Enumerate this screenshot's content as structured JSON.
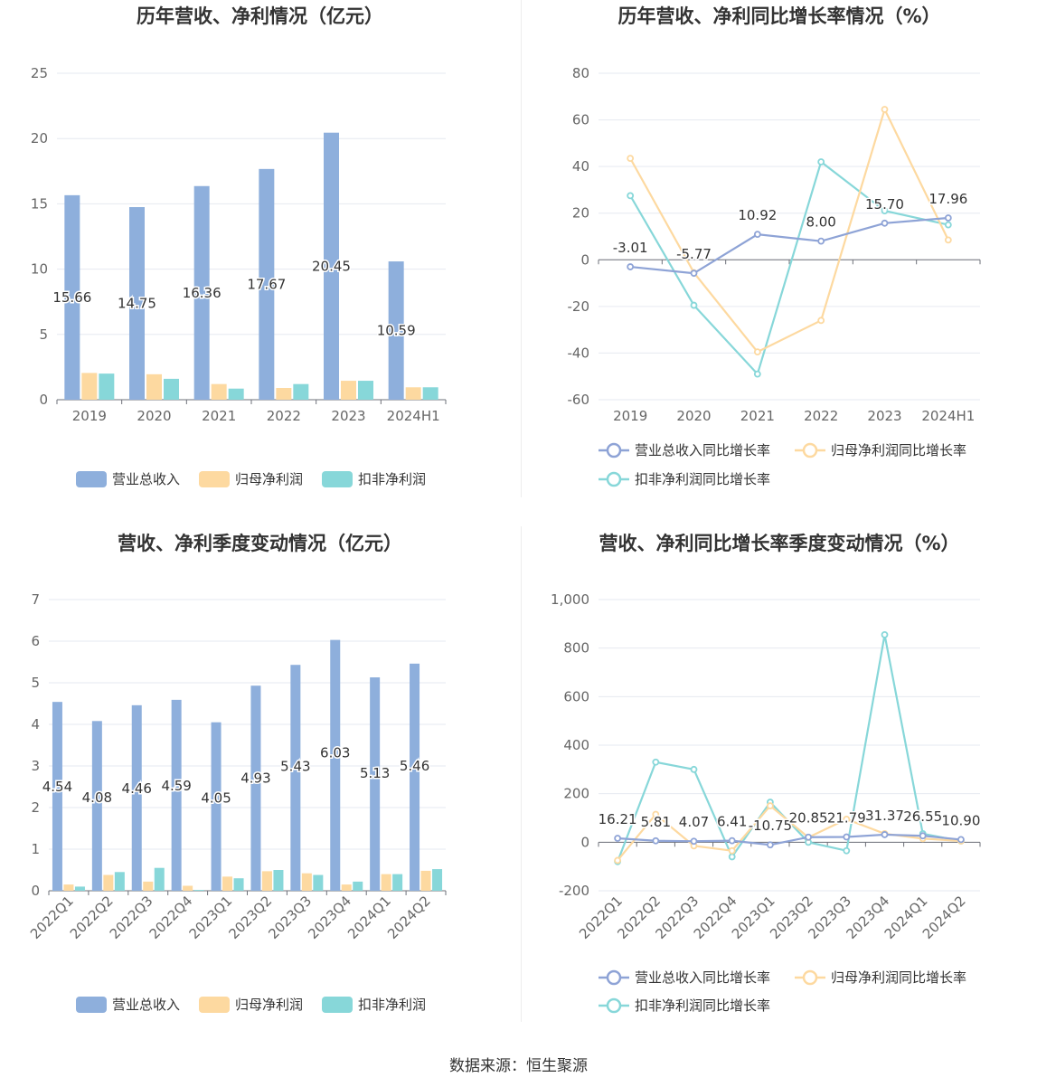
{
  "source": "数据来源：恒生聚源",
  "chart_data": [
    {
      "type": "bar",
      "title": "历年营收、净利情况（亿元）",
      "categories": [
        "2019",
        "2020",
        "2021",
        "2022",
        "2023",
        "2024H1"
      ],
      "ylim": [
        0,
        25
      ],
      "yticks": [
        "0",
        "5",
        "10",
        "15",
        "20",
        "25"
      ],
      "grid": true,
      "legend_position": "bottom",
      "series": [
        {
          "name": "营业总收入",
          "color": "#8eafdc",
          "values": [
            15.66,
            14.75,
            16.36,
            17.67,
            20.45,
            10.59
          ],
          "labels": [
            "15.66",
            "14.75",
            "16.36",
            "17.67",
            "20.45",
            "10.59"
          ]
        },
        {
          "name": "归母净利润",
          "color": "#fdd9a0",
          "values": [
            2.05,
            1.95,
            1.2,
            0.9,
            1.45,
            0.95
          ]
        },
        {
          "name": "扣非净利润",
          "color": "#87d7d9",
          "values": [
            2.0,
            1.6,
            0.85,
            1.2,
            1.45,
            0.95
          ]
        }
      ]
    },
    {
      "type": "line",
      "title": "历年营收、净利同比增长率情况（%）",
      "categories": [
        "2019",
        "2020",
        "2021",
        "2022",
        "2023",
        "2024H1"
      ],
      "ylim": [
        -60,
        80
      ],
      "yticks": [
        "-60",
        "-40",
        "-20",
        "0",
        "20",
        "40",
        "60",
        "80"
      ],
      "grid": true,
      "legend_position": "bottom",
      "series": [
        {
          "name": "营业总收入同比增长率",
          "color": "#8ea3d6",
          "values": [
            -3.01,
            -5.77,
            10.92,
            8.0,
            15.7,
            17.96
          ],
          "labels": [
            "-3.01",
            "-5.77",
            "10.92",
            "8.00",
            "15.70",
            "17.96"
          ]
        },
        {
          "name": "归母净利润同比增长率",
          "color": "#fdd9a0",
          "values": [
            43.5,
            -5.5,
            -39.5,
            -26.0,
            64.5,
            8.5
          ]
        },
        {
          "name": "扣非净利润同比增长率",
          "color": "#87d7d9",
          "values": [
            27.5,
            -19.5,
            -49.0,
            42.0,
            21.0,
            15.0
          ]
        }
      ]
    },
    {
      "type": "bar",
      "title": "营收、净利季度变动情况（亿元）",
      "categories": [
        "2022Q1",
        "2022Q2",
        "2022Q3",
        "2022Q4",
        "2023Q1",
        "2023Q2",
        "2023Q3",
        "2023Q4",
        "2024Q1",
        "2024Q2"
      ],
      "ylim": [
        0,
        7
      ],
      "yticks": [
        "0",
        "1",
        "2",
        "3",
        "4",
        "5",
        "6",
        "7"
      ],
      "grid": true,
      "legend_position": "bottom",
      "series": [
        {
          "name": "营业总收入",
          "color": "#8eafdc",
          "values": [
            4.54,
            4.08,
            4.46,
            4.59,
            4.05,
            4.93,
            5.43,
            6.03,
            5.13,
            5.46
          ],
          "labels": [
            "4.54",
            "4.08",
            "4.46",
            "4.59",
            "4.05",
            "4.93",
            "5.43",
            "6.03",
            "5.13",
            "5.46"
          ]
        },
        {
          "name": "归母净利润",
          "color": "#fdd9a0",
          "values": [
            0.15,
            0.38,
            0.22,
            0.12,
            0.34,
            0.47,
            0.42,
            0.15,
            0.4,
            0.48
          ]
        },
        {
          "name": "扣非净利润",
          "color": "#87d7d9",
          "values": [
            0.1,
            0.45,
            0.55,
            0.02,
            0.3,
            0.5,
            0.38,
            0.22,
            0.4,
            0.52
          ]
        }
      ]
    },
    {
      "type": "line",
      "title": "营收、净利同比增长率季度变动情况（%）",
      "categories": [
        "2022Q1",
        "2022Q2",
        "2022Q3",
        "2022Q4",
        "2023Q1",
        "2023Q2",
        "2023Q3",
        "2023Q4",
        "2024Q1",
        "2024Q2"
      ],
      "ylim": [
        -200,
        1000
      ],
      "yticks": [
        "-200",
        "0",
        "200",
        "400",
        "600",
        "800",
        "1,000"
      ],
      "grid": true,
      "legend_position": "bottom",
      "series": [
        {
          "name": "营业总收入同比增长率",
          "color": "#8ea3d6",
          "values": [
            16.21,
            5.81,
            4.07,
            6.41,
            -10.75,
            20.85,
            21.79,
            31.37,
            26.55,
            10.9
          ],
          "labels": [
            "16.21",
            "5.81",
            "4.07",
            "6.41",
            "-10.75",
            "20.85",
            "21.79",
            "31.37",
            "26.55",
            "10.90"
          ]
        },
        {
          "name": "归母净利润同比增长率",
          "color": "#fdd9a0",
          "values": [
            -75,
            115,
            -15,
            -35,
            150,
            20,
            95,
            35,
            15,
            5
          ]
        },
        {
          "name": "扣非净利润同比增长率",
          "color": "#87d7d9",
          "values": [
            -80,
            330,
            300,
            -60,
            165,
            0,
            -35,
            855,
            35,
            5
          ]
        }
      ]
    }
  ]
}
